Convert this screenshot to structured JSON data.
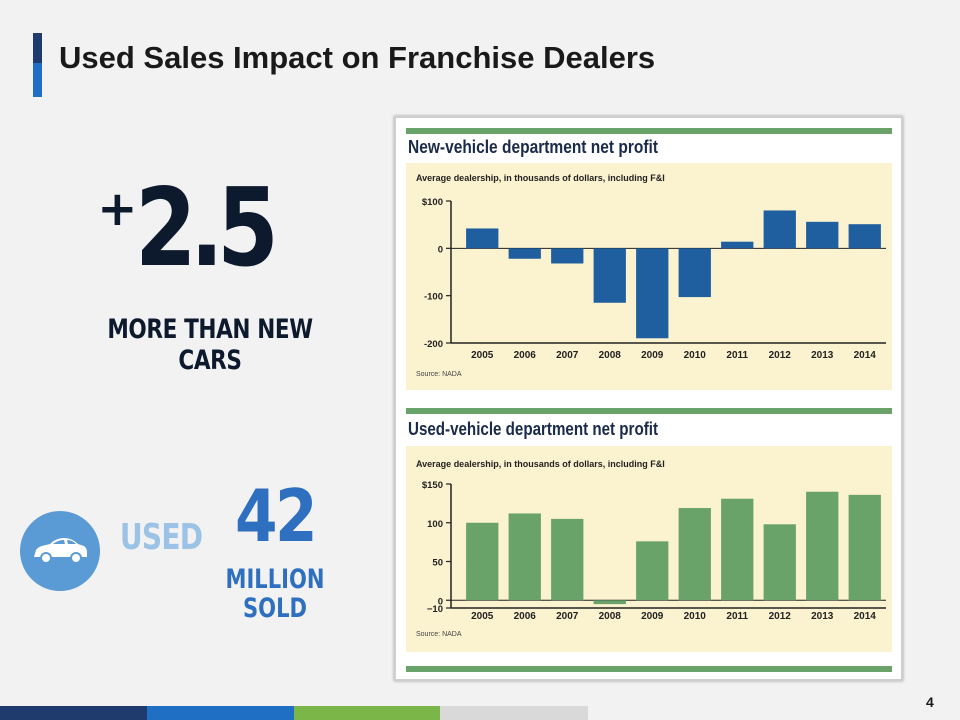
{
  "slide": {
    "title": "Used Sales Impact on Franchise Dealers",
    "page_number": "4"
  },
  "stat_new": {
    "plus": "+",
    "value": "2.5",
    "caption": "MORE THAN NEW CARS"
  },
  "stat_used": {
    "icon": "car-icon",
    "label": "USED",
    "value": "42",
    "caption_line1": "MILLION",
    "caption_line2": "SOLD"
  },
  "colors": {
    "dark_navy": "#1f3b6d",
    "accent_blue": "#1f6fc4",
    "used_light": "#9cc3e6",
    "used_blue": "#2f6fbf",
    "new_bar": "#1f5fa0",
    "used_bar": "#6aa36a",
    "chart_bg": "#fbf2cf",
    "chart_rule": "#6aa36a",
    "footer": [
      "#1f3b6d",
      "#1f6fc4",
      "#7ab648",
      "#d9d9d9"
    ]
  },
  "chart_data": [
    {
      "type": "bar",
      "title": "New-vehicle department net profit",
      "subtitle": "Average dealership, in thousands of dollars, including F&I",
      "source": "Source: NADA",
      "categories": [
        "2005",
        "2006",
        "2007",
        "2008",
        "2009",
        "2010",
        "2011",
        "2012",
        "2013",
        "2014"
      ],
      "values": [
        42,
        -22,
        -32,
        -115,
        -190,
        -103,
        14,
        80,
        56,
        51
      ],
      "ylim": [
        -200,
        100
      ],
      "yticks": [
        100,
        0,
        -100,
        -200
      ],
      "ytick_labels": [
        "$100",
        "0",
        "-100",
        "-200"
      ],
      "bar_color": "#1f5fa0"
    },
    {
      "type": "bar",
      "title": "Used-vehicle department net profit",
      "subtitle": "Average dealership, in thousands of dollars, including F&I",
      "source": "Source: NADA",
      "categories": [
        "2005",
        "2006",
        "2007",
        "2008",
        "2009",
        "2010",
        "2011",
        "2012",
        "2013",
        "2014"
      ],
      "values": [
        100,
        112,
        105,
        -5,
        76,
        119,
        131,
        98,
        140,
        136
      ],
      "ylim": [
        -10,
        150
      ],
      "yticks": [
        150,
        100,
        50,
        0,
        -10
      ],
      "ytick_labels": [
        "$150",
        "100",
        "50",
        "0",
        "−10"
      ],
      "bar_color": "#6aa36a"
    }
  ]
}
